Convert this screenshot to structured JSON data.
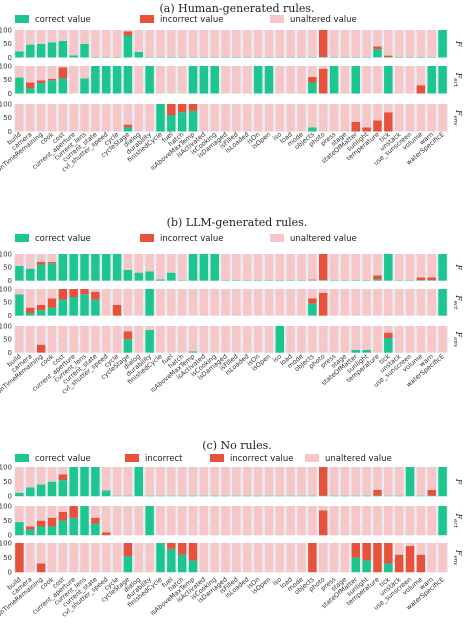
{
  "colors": {
    "correct": "#1dc58f",
    "incorrect": "#e8513a",
    "unaltered": "#f7c6c6",
    "panel_bg": "#e5ecf6"
  },
  "categories": [
    "build",
    "camera",
    "conditionTimeRemaining",
    "cook",
    "cost",
    "current_aperture",
    "current_lens",
    "current_state",
    "cvl_shutter_speed",
    "cycle",
    "cycleStage",
    "dialog",
    "durability",
    "finishedCycle",
    "fuel",
    "hatch",
    "isAboveMaxTemp",
    "isActivated",
    "isCooking",
    "isDamaged",
    "isFilled",
    "isLoaded",
    "isOn",
    "isOpen",
    "iso",
    "load",
    "mode",
    "objects",
    "photo",
    "press",
    "stage",
    "stateOfMatter",
    "sunlight",
    "temperature",
    "tick",
    "unstack",
    "use_sunscreen",
    "volume",
    "warn",
    "waterSpecificE"
  ],
  "chart_data": [
    {
      "type": "bar",
      "title": "(a) Human-generated rules.",
      "legend": [
        "correct value",
        "incorrect value",
        "unaltered value"
      ],
      "rows": [
        {
          "label": "F",
          "sub": "",
          "correct": [
            22,
            47,
            50,
            55,
            60,
            8,
            50,
            2,
            2,
            2,
            80,
            20,
            2,
            2,
            2,
            2,
            2,
            2,
            2,
            2,
            2,
            2,
            2,
            2,
            2,
            2,
            2,
            2,
            2,
            2,
            2,
            2,
            2,
            30,
            2,
            2,
            2,
            2,
            2,
            100
          ],
          "incorrect": [
            0,
            0,
            0,
            0,
            0,
            0,
            0,
            0,
            0,
            0,
            15,
            0,
            0,
            0,
            0,
            0,
            0,
            0,
            0,
            0,
            0,
            0,
            0,
            0,
            0,
            0,
            0,
            0,
            98,
            0,
            0,
            0,
            0,
            10,
            5,
            0,
            0,
            0,
            0,
            0
          ]
        },
        {
          "label": "F",
          "sub": "ect",
          "correct": [
            58,
            20,
            38,
            48,
            55,
            0,
            55,
            100,
            100,
            100,
            100,
            0,
            100,
            0,
            0,
            0,
            100,
            100,
            100,
            0,
            0,
            0,
            100,
            100,
            0,
            0,
            0,
            40,
            0,
            100,
            0,
            100,
            0,
            0,
            100,
            0,
            0,
            0,
            100,
            100
          ],
          "incorrect": [
            0,
            20,
            10,
            5,
            40,
            0,
            0,
            0,
            0,
            0,
            0,
            0,
            0,
            0,
            0,
            0,
            0,
            0,
            0,
            0,
            0,
            0,
            0,
            0,
            0,
            0,
            0,
            20,
            90,
            0,
            0,
            0,
            0,
            0,
            0,
            0,
            0,
            30,
            0,
            0
          ]
        },
        {
          "label": "F",
          "sub": "env",
          "correct": [
            0,
            0,
            0,
            0,
            0,
            0,
            0,
            0,
            0,
            0,
            15,
            0,
            0,
            100,
            60,
            70,
            75,
            0,
            0,
            0,
            0,
            0,
            0,
            0,
            0,
            0,
            0,
            15,
            0,
            0,
            0,
            0,
            0,
            0,
            0,
            0,
            0,
            0,
            0,
            0
          ],
          "incorrect": [
            0,
            0,
            0,
            0,
            0,
            0,
            0,
            0,
            0,
            0,
            10,
            0,
            0,
            0,
            40,
            30,
            25,
            0,
            0,
            0,
            0,
            0,
            0,
            0,
            0,
            0,
            0,
            0,
            0,
            0,
            0,
            35,
            15,
            40,
            70,
            0,
            0,
            0,
            0,
            0
          ]
        }
      ]
    },
    {
      "type": "bar",
      "title": "(b) LLM-generated rules.",
      "legend": [
        "correct value",
        "incorrect value",
        "unaltered value"
      ],
      "rows": [
        {
          "label": "F",
          "sub": "",
          "correct": [
            55,
            45,
            60,
            65,
            100,
            100,
            100,
            100,
            100,
            100,
            40,
            30,
            35,
            5,
            30,
            2,
            100,
            100,
            100,
            2,
            2,
            2,
            2,
            2,
            2,
            2,
            2,
            2,
            2,
            2,
            2,
            2,
            2,
            5,
            100,
            2,
            2,
            2,
            2,
            100
          ],
          "incorrect": [
            0,
            0,
            10,
            5,
            0,
            0,
            0,
            0,
            0,
            0,
            0,
            0,
            0,
            0,
            0,
            0,
            0,
            0,
            0,
            0,
            0,
            0,
            0,
            0,
            0,
            0,
            0,
            2,
            98,
            0,
            0,
            0,
            0,
            15,
            0,
            0,
            0,
            10,
            10,
            0
          ]
        },
        {
          "label": "F",
          "sub": "ect",
          "correct": [
            80,
            10,
            20,
            30,
            60,
            70,
            80,
            60,
            0,
            0,
            0,
            0,
            100,
            0,
            0,
            0,
            0,
            0,
            0,
            0,
            0,
            0,
            0,
            0,
            0,
            0,
            0,
            45,
            0,
            0,
            0,
            0,
            0,
            0,
            0,
            0,
            0,
            0,
            0,
            100
          ],
          "incorrect": [
            0,
            20,
            20,
            35,
            40,
            30,
            20,
            30,
            0,
            40,
            0,
            0,
            0,
            0,
            0,
            0,
            0,
            0,
            0,
            0,
            0,
            0,
            0,
            0,
            0,
            0,
            0,
            20,
            85,
            0,
            0,
            0,
            0,
            0,
            0,
            0,
            0,
            0,
            0,
            0
          ]
        },
        {
          "label": "F",
          "sub": "env",
          "correct": [
            0,
            0,
            0,
            0,
            0,
            0,
            0,
            0,
            0,
            0,
            50,
            0,
            85,
            0,
            0,
            0,
            5,
            0,
            0,
            0,
            0,
            0,
            0,
            0,
            100,
            0,
            0,
            0,
            0,
            0,
            0,
            10,
            10,
            0,
            55,
            0,
            0,
            0,
            0,
            0
          ],
          "incorrect": [
            0,
            0,
            30,
            0,
            0,
            0,
            0,
            0,
            0,
            0,
            30,
            0,
            0,
            0,
            0,
            0,
            0,
            0,
            0,
            0,
            0,
            0,
            0,
            0,
            0,
            0,
            0,
            0,
            0,
            0,
            0,
            0,
            0,
            0,
            20,
            0,
            0,
            0,
            0,
            0
          ]
        }
      ]
    },
    {
      "type": "bar",
      "title": "(c) No rules.",
      "legend": [
        "correct value",
        "incorrect",
        "incorrect value",
        "unaltered value"
      ],
      "rows": [
        {
          "label": "F",
          "sub": "",
          "correct": [
            12,
            30,
            40,
            50,
            55,
            100,
            100,
            100,
            20,
            2,
            2,
            100,
            2,
            2,
            2,
            2,
            2,
            2,
            2,
            2,
            2,
            2,
            2,
            2,
            2,
            2,
            2,
            2,
            2,
            2,
            2,
            2,
            2,
            2,
            2,
            2,
            100,
            2,
            2,
            100
          ],
          "incorrect": [
            0,
            0,
            0,
            0,
            20,
            0,
            0,
            0,
            0,
            0,
            0,
            0,
            0,
            0,
            0,
            0,
            0,
            0,
            0,
            0,
            0,
            0,
            0,
            0,
            0,
            0,
            0,
            0,
            98,
            0,
            0,
            0,
            0,
            20,
            0,
            0,
            0,
            0,
            20,
            0
          ]
        },
        {
          "label": "F",
          "sub": "ect",
          "correct": [
            45,
            20,
            30,
            30,
            50,
            60,
            100,
            40,
            0,
            0,
            0,
            0,
            100,
            0,
            0,
            0,
            0,
            0,
            0,
            0,
            0,
            0,
            0,
            0,
            0,
            0,
            0,
            0,
            0,
            0,
            0,
            0,
            0,
            0,
            0,
            0,
            0,
            0,
            0,
            100
          ],
          "incorrect": [
            0,
            10,
            20,
            30,
            30,
            40,
            0,
            20,
            10,
            0,
            0,
            0,
            0,
            0,
            0,
            0,
            0,
            0,
            0,
            0,
            0,
            0,
            0,
            0,
            0,
            0,
            0,
            0,
            85,
            0,
            0,
            0,
            0,
            0,
            0,
            0,
            0,
            0,
            0,
            0
          ]
        },
        {
          "label": "F",
          "sub": "env",
          "correct": [
            0,
            0,
            0,
            0,
            0,
            0,
            0,
            0,
            0,
            0,
            55,
            0,
            0,
            100,
            80,
            60,
            40,
            0,
            0,
            0,
            0,
            0,
            0,
            0,
            0,
            0,
            0,
            0,
            0,
            0,
            0,
            50,
            40,
            0,
            30,
            0,
            0,
            0,
            0,
            0
          ],
          "incorrect": [
            100,
            0,
            30,
            0,
            0,
            0,
            0,
            0,
            0,
            0,
            45,
            0,
            0,
            0,
            20,
            40,
            60,
            0,
            0,
            0,
            0,
            0,
            0,
            0,
            0,
            0,
            0,
            100,
            0,
            0,
            0,
            50,
            60,
            100,
            70,
            60,
            90,
            60,
            0,
            0
          ]
        }
      ]
    }
  ],
  "yticks": [
    "0",
    "50",
    "100"
  ]
}
